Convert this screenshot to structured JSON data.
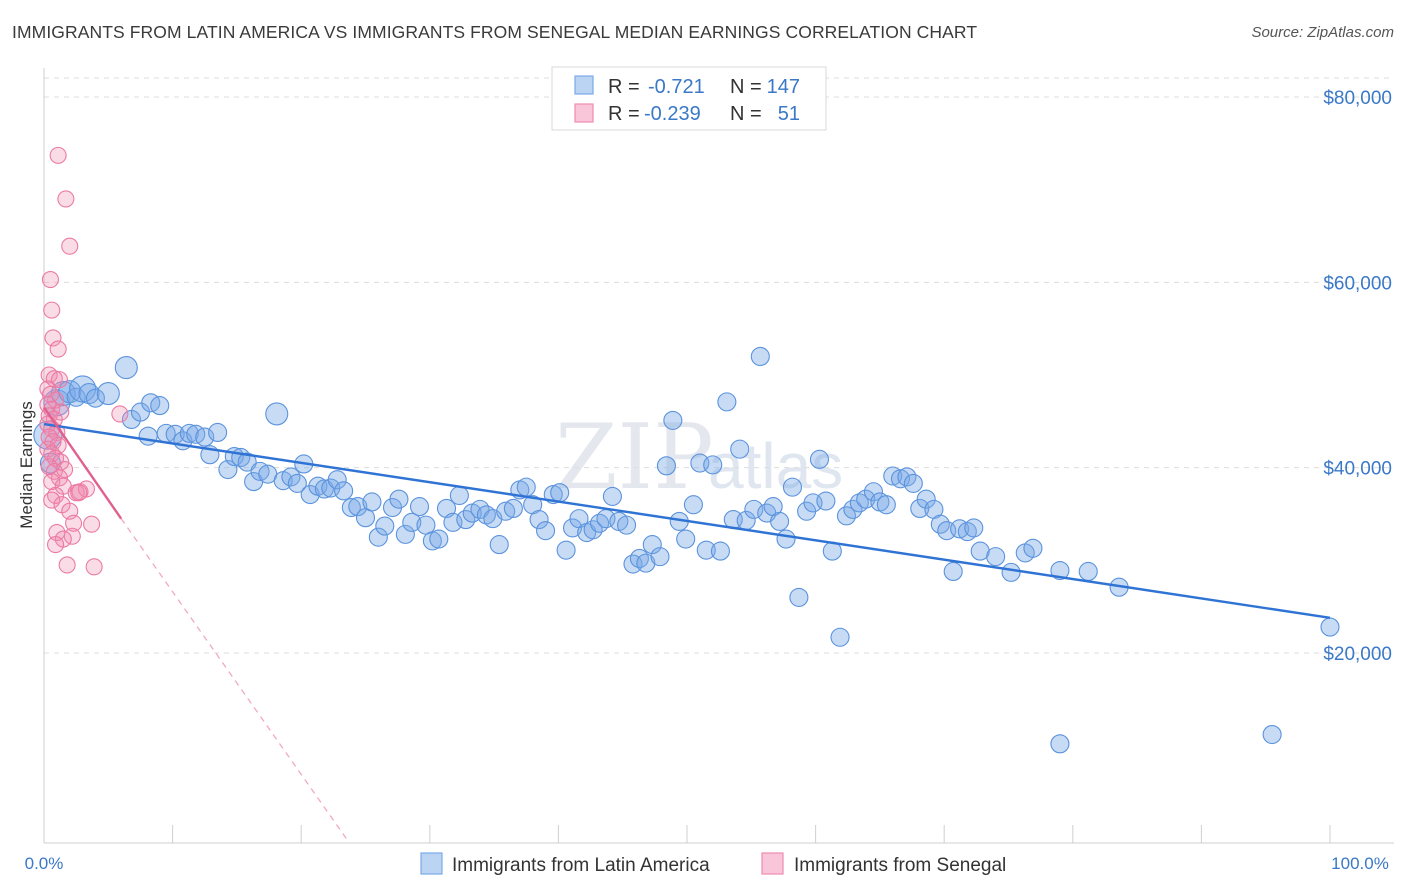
{
  "header": {
    "title": "IMMIGRANTS FROM LATIN AMERICA VS IMMIGRANTS FROM SENEGAL MEDIAN EARNINGS CORRELATION CHART",
    "source": "Source: ZipAtlas.com"
  },
  "watermark": {
    "zip": "ZIP",
    "atlas": "atlas"
  },
  "legend": {
    "rows": [
      {
        "r_label": "R =",
        "r_value": "-0.721",
        "n_label": "N =",
        "n_value": "147",
        "color": "#7aaae8"
      },
      {
        "r_label": "R =",
        "r_value": "-0.239",
        "n_label": "N =",
        "n_value": "51",
        "color": "#f08cb0"
      }
    ]
  },
  "bottom_legend": [
    {
      "label": "Immigrants from Latin America",
      "color": "#7aaae8"
    },
    {
      "label": "Immigrants from Senegal",
      "color": "#f08cb0"
    }
  ],
  "chart_data": {
    "type": "scatter",
    "title": "IMMIGRANTS FROM LATIN AMERICA VS IMMIGRANTS FROM SENEGAL MEDIAN EARNINGS CORRELATION CHART",
    "xlabel": "",
    "ylabel": "Median Earnings",
    "x_tick_labels": [
      "0.0%",
      "100.0%"
    ],
    "y_tick_labels": [
      "$20,000",
      "$40,000",
      "$60,000",
      "$80,000"
    ],
    "y_ticks": [
      20000,
      40000,
      60000,
      80000
    ],
    "xlim": [
      0,
      100
    ],
    "ylim": [
      0,
      82000
    ],
    "grid": true,
    "legend_position": "top-center",
    "colors": {
      "latin": "#5b93dd",
      "senegal": "#ec7aa3",
      "trend_latin": "#2f73d4",
      "trend_senegal": "#e0608f"
    },
    "series": [
      {
        "name": "Immigrants from Latin America",
        "r": -0.721,
        "n": 147,
        "trend": {
          "x": [
            0,
            100
          ],
          "y": [
            44700,
            23800
          ]
        },
        "points": [
          [
            0.3,
            43500,
            14
          ],
          [
            0.5,
            40500,
            10
          ],
          [
            1.0,
            47000,
            13
          ],
          [
            1.5,
            48000,
            12
          ],
          [
            2.0,
            48200,
            11
          ],
          [
            2.5,
            47600,
            9
          ],
          [
            3.0,
            48500,
            13
          ],
          [
            3.5,
            48000,
            10
          ],
          [
            4.0,
            47500,
            9
          ],
          [
            5.0,
            48000,
            11
          ],
          [
            6.4,
            50800,
            11
          ],
          [
            6.8,
            45200,
            9
          ],
          [
            7.5,
            46000,
            9
          ],
          [
            8.3,
            47000,
            9
          ],
          [
            9.0,
            46700,
            9
          ],
          [
            9.5,
            43700,
            9
          ],
          [
            10.2,
            43600,
            9
          ],
          [
            10.8,
            42900,
            9
          ],
          [
            11.3,
            43700,
            9
          ],
          [
            11.8,
            43600,
            9
          ],
          [
            12.5,
            43300,
            9
          ],
          [
            12.9,
            41400,
            9
          ],
          [
            13.5,
            43800,
            9
          ],
          [
            14.3,
            39800,
            9
          ],
          [
            14.8,
            41200,
            9
          ],
          [
            15.3,
            41100,
            9
          ],
          [
            15.8,
            40600,
            9
          ],
          [
            16.3,
            38500,
            9
          ],
          [
            16.8,
            39600,
            9
          ],
          [
            17.4,
            39300,
            9
          ],
          [
            18.1,
            45800,
            11
          ],
          [
            18.6,
            38600,
            9
          ],
          [
            19.2,
            39000,
            9
          ],
          [
            19.7,
            38300,
            9
          ],
          [
            20.2,
            40400,
            9
          ],
          [
            20.7,
            37100,
            9
          ],
          [
            21.3,
            38000,
            9
          ],
          [
            21.8,
            37700,
            9
          ],
          [
            22.3,
            37800,
            9
          ],
          [
            22.8,
            38700,
            9
          ],
          [
            23.3,
            37500,
            9
          ],
          [
            23.9,
            35700,
            9
          ],
          [
            24.4,
            35800,
            9
          ],
          [
            25.0,
            34600,
            9
          ],
          [
            25.5,
            36300,
            9
          ],
          [
            26.0,
            32500,
            9
          ],
          [
            26.5,
            33700,
            9
          ],
          [
            27.1,
            35700,
            9
          ],
          [
            27.6,
            36600,
            9
          ],
          [
            28.1,
            32800,
            9
          ],
          [
            28.6,
            34100,
            9
          ],
          [
            29.2,
            35800,
            9
          ],
          [
            29.7,
            33800,
            9
          ],
          [
            30.2,
            32100,
            9
          ],
          [
            30.7,
            32300,
            9
          ],
          [
            31.3,
            35600,
            9
          ],
          [
            31.8,
            34100,
            9
          ],
          [
            32.3,
            37000,
            9
          ],
          [
            32.8,
            34400,
            9
          ],
          [
            33.3,
            35100,
            9
          ],
          [
            33.9,
            35500,
            9
          ],
          [
            34.4,
            34900,
            9
          ],
          [
            34.9,
            34500,
            9
          ],
          [
            35.4,
            31700,
            9
          ],
          [
            35.9,
            35300,
            9
          ],
          [
            36.5,
            35600,
            9
          ],
          [
            37.0,
            37600,
            9
          ],
          [
            37.5,
            37900,
            9
          ],
          [
            38.0,
            36000,
            9
          ],
          [
            38.5,
            34400,
            9
          ],
          [
            39.0,
            33200,
            9
          ],
          [
            39.6,
            37100,
            9
          ],
          [
            40.1,
            37300,
            9
          ],
          [
            40.6,
            31100,
            9
          ],
          [
            41.1,
            33500,
            9
          ],
          [
            41.6,
            34500,
            9
          ],
          [
            42.2,
            33000,
            9
          ],
          [
            42.7,
            33300,
            9
          ],
          [
            43.2,
            34000,
            9
          ],
          [
            43.7,
            34500,
            9
          ],
          [
            44.2,
            36900,
            9
          ],
          [
            44.7,
            34200,
            9
          ],
          [
            45.3,
            33800,
            9
          ],
          [
            45.8,
            29600,
            9
          ],
          [
            46.3,
            30200,
            9
          ],
          [
            46.8,
            29700,
            9
          ],
          [
            47.3,
            31700,
            9
          ],
          [
            47.9,
            30400,
            9
          ],
          [
            48.4,
            40200,
            9
          ],
          [
            48.9,
            45100,
            9
          ],
          [
            49.4,
            34200,
            9
          ],
          [
            49.9,
            32300,
            9
          ],
          [
            50.5,
            36000,
            9
          ],
          [
            51.0,
            40500,
            9
          ],
          [
            51.5,
            31100,
            9
          ],
          [
            52.0,
            40300,
            9
          ],
          [
            52.6,
            31000,
            9
          ],
          [
            53.1,
            47100,
            9
          ],
          [
            53.6,
            34400,
            9
          ],
          [
            54.1,
            42000,
            9
          ],
          [
            54.6,
            34300,
            9
          ],
          [
            55.2,
            35500,
            9
          ],
          [
            55.7,
            52000,
            9
          ],
          [
            56.2,
            35100,
            9
          ],
          [
            56.7,
            35800,
            9
          ],
          [
            57.2,
            34200,
            9
          ],
          [
            57.7,
            32300,
            9
          ],
          [
            58.2,
            37900,
            9
          ],
          [
            58.7,
            26000,
            9
          ],
          [
            59.3,
            35300,
            9
          ],
          [
            59.8,
            36200,
            9
          ],
          [
            60.3,
            40900,
            9
          ],
          [
            60.8,
            36400,
            9
          ],
          [
            61.3,
            31000,
            9
          ],
          [
            61.9,
            21700,
            9
          ],
          [
            62.4,
            34800,
            9
          ],
          [
            62.9,
            35500,
            9
          ],
          [
            63.4,
            36200,
            9
          ],
          [
            63.9,
            36600,
            9
          ],
          [
            64.5,
            37400,
            9
          ],
          [
            65.0,
            36300,
            9
          ],
          [
            65.5,
            36000,
            9
          ],
          [
            66.0,
            39100,
            9
          ],
          [
            66.6,
            38800,
            9
          ],
          [
            67.1,
            39000,
            9
          ],
          [
            67.6,
            38300,
            9
          ],
          [
            68.1,
            35600,
            9
          ],
          [
            68.6,
            36600,
            9
          ],
          [
            69.2,
            35500,
            9
          ],
          [
            69.7,
            33900,
            9
          ],
          [
            70.2,
            33200,
            9
          ],
          [
            70.7,
            28800,
            9
          ],
          [
            71.2,
            33400,
            9
          ],
          [
            71.8,
            33100,
            9
          ],
          [
            72.3,
            33500,
            9
          ],
          [
            72.8,
            31000,
            9
          ],
          [
            74.0,
            30400,
            9
          ],
          [
            75.2,
            28700,
            9
          ],
          [
            76.3,
            30800,
            9
          ],
          [
            76.9,
            31300,
            9
          ],
          [
            79.0,
            28900,
            9
          ],
          [
            81.2,
            28800,
            9
          ],
          [
            83.6,
            27100,
            9
          ],
          [
            79.0,
            10200,
            9
          ],
          [
            95.5,
            11200,
            9
          ],
          [
            100.0,
            22800,
            9
          ],
          [
            8.1,
            43400,
            9
          ]
        ]
      },
      {
        "name": "Immigrants from Senegal",
        "r": -0.239,
        "n": 51,
        "trend": {
          "x": [
            0,
            6
          ],
          "y": [
            46500,
            34500
          ]
        },
        "trend_extended": {
          "x": [
            6,
            23.5
          ],
          "y": [
            34500,
            0
          ]
        },
        "points": [
          [
            1.1,
            73700,
            8
          ],
          [
            1.7,
            69000,
            8
          ],
          [
            2.0,
            63900,
            8
          ],
          [
            0.5,
            60300,
            8
          ],
          [
            0.6,
            57000,
            8
          ],
          [
            0.7,
            54000,
            8
          ],
          [
            1.1,
            52800,
            8
          ],
          [
            0.4,
            50000,
            8
          ],
          [
            0.8,
            49600,
            8
          ],
          [
            1.2,
            49500,
            8
          ],
          [
            0.3,
            48500,
            8
          ],
          [
            0.5,
            47900,
            8
          ],
          [
            0.9,
            47300,
            8
          ],
          [
            0.3,
            46800,
            8
          ],
          [
            0.6,
            46300,
            8
          ],
          [
            1.3,
            46000,
            8
          ],
          [
            0.4,
            45600,
            8
          ],
          [
            0.8,
            45200,
            8
          ],
          [
            0.3,
            44700,
            8
          ],
          [
            0.6,
            44200,
            8
          ],
          [
            1.0,
            43800,
            8
          ],
          [
            0.4,
            43300,
            8
          ],
          [
            0.7,
            42800,
            8
          ],
          [
            1.1,
            42400,
            8
          ],
          [
            0.3,
            42000,
            8
          ],
          [
            0.6,
            41500,
            8
          ],
          [
            0.9,
            41000,
            8
          ],
          [
            1.3,
            40600,
            8
          ],
          [
            0.4,
            40100,
            8
          ],
          [
            0.8,
            39600,
            8
          ],
          [
            1.6,
            39800,
            8
          ],
          [
            1.2,
            38900,
            8
          ],
          [
            0.6,
            38500,
            8
          ],
          [
            1.5,
            38000,
            8
          ],
          [
            2.5,
            37300,
            8
          ],
          [
            0.9,
            37000,
            8
          ],
          [
            2.8,
            37400,
            8
          ],
          [
            3.3,
            37700,
            8
          ],
          [
            0.6,
            36500,
            8
          ],
          [
            1.4,
            36000,
            8
          ],
          [
            2.0,
            35300,
            8
          ],
          [
            2.3,
            34000,
            8
          ],
          [
            3.7,
            33900,
            8
          ],
          [
            1.0,
            33000,
            8
          ],
          [
            2.2,
            32600,
            8
          ],
          [
            1.5,
            32300,
            8
          ],
          [
            0.9,
            31700,
            8
          ],
          [
            1.8,
            29500,
            8
          ],
          [
            3.9,
            29300,
            8
          ],
          [
            5.9,
            45800,
            8
          ],
          [
            2.7,
            37300,
            8
          ]
        ]
      }
    ]
  }
}
